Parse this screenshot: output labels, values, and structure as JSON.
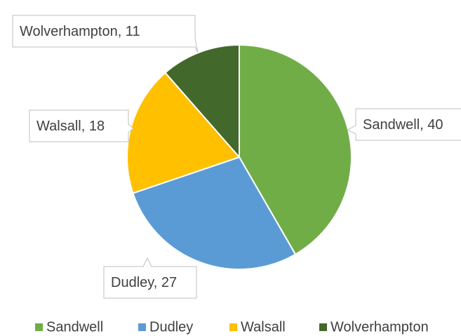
{
  "chart_data": {
    "type": "pie",
    "categories": [
      "Sandwell",
      "Dudley",
      "Walsall",
      "Wolverhampton"
    ],
    "values": [
      40,
      27,
      18,
      11
    ],
    "value_labels": [
      "Sandwell, 40",
      "Dudley, 27",
      "Walsall, 18",
      "Wolverhampton, 11"
    ],
    "colors": [
      "#70ad47",
      "#5b9bd5",
      "#ffc000",
      "#43682b"
    ],
    "legend": "bottom"
  }
}
